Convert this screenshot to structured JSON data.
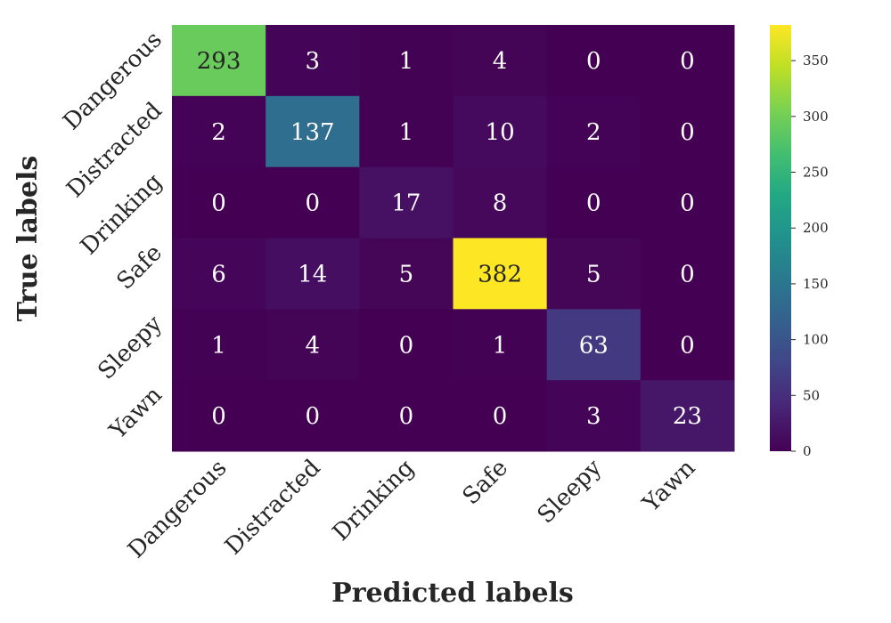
{
  "chart_data": {
    "type": "heatmap",
    "title": "",
    "xlabel": "Predicted labels",
    "ylabel": "True labels",
    "x_categories": [
      "Dangerous",
      "Distracted",
      "Drinking",
      "Safe",
      "Sleepy",
      "Yawn"
    ],
    "y_categories": [
      "Dangerous",
      "Distracted",
      "Drinking",
      "Safe",
      "Sleepy",
      "Yawn"
    ],
    "values": [
      [
        293,
        3,
        1,
        4,
        0,
        0
      ],
      [
        2,
        137,
        1,
        10,
        2,
        0
      ],
      [
        0,
        0,
        17,
        8,
        0,
        0
      ],
      [
        6,
        14,
        5,
        382,
        5,
        0
      ],
      [
        1,
        4,
        0,
        1,
        63,
        0
      ],
      [
        0,
        0,
        0,
        0,
        3,
        23
      ]
    ],
    "colormap": "viridis",
    "vmin": 0,
    "vmax": 382,
    "colorbar_ticks": [
      0,
      50,
      100,
      150,
      200,
      250,
      300,
      350
    ],
    "grid": false,
    "legend": "colorbar-right"
  }
}
